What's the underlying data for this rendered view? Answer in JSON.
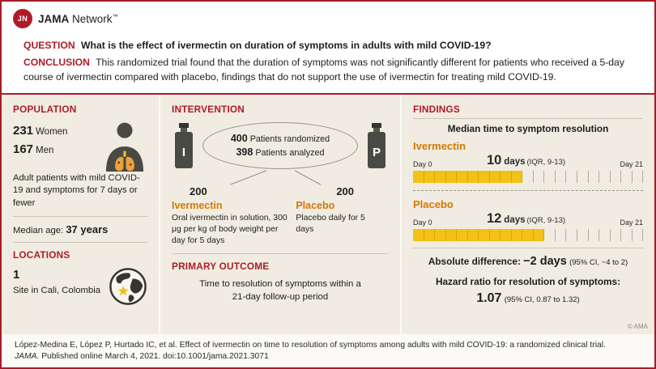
{
  "brand": {
    "logo_monogram": "JN",
    "name_bold": "JAMA",
    "name_regular": "Network",
    "trademark": "™"
  },
  "summary": {
    "question_label": "QUESTION",
    "question_text": "What is the effect of ivermectin on duration of symptoms in adults with mild COVID-19?",
    "conclusion_label": "CONCLUSION",
    "conclusion_text": "This randomized trial found that the duration of symptoms was not significantly different for patients who received a 5-day course of ivermectin compared with placebo, findings that do not support the use of ivermectin for treating mild COVID-19."
  },
  "population": {
    "heading": "POPULATION",
    "stats": [
      {
        "value": "231",
        "label": "Women"
      },
      {
        "value": "167",
        "label": "Men"
      }
    ],
    "description": "Adult patients with mild COVID-19 and symptoms for 7 days or fewer",
    "median_age_label": "Median age:",
    "median_age_value": "37 years"
  },
  "locations": {
    "heading": "LOCATIONS",
    "count": "1",
    "description": "Site in Cali, Colombia"
  },
  "intervention": {
    "heading": "INTERVENTION",
    "bottle_left_letter": "I",
    "bottle_right_letter": "P",
    "randomized_value": "400",
    "randomized_label": "Patients randomized",
    "analyzed_value": "398",
    "analyzed_label": "Patients analyzed",
    "arms": [
      {
        "count": "200",
        "name": "Ivermectin",
        "description": "Oral ivermectin in solution, 300 μg per kg of body weight per day for 5 days"
      },
      {
        "count": "200",
        "name": "Placebo",
        "description": "Placebo daily for 5 days"
      }
    ]
  },
  "primary_outcome": {
    "heading": "PRIMARY OUTCOME",
    "text": "Time to resolution of symptoms within a 21-day follow-up period"
  },
  "findings": {
    "heading": "FINDINGS",
    "subtitle": "Median time to symptom resolution",
    "groups": [
      {
        "name": "Ivermectin",
        "value": "10",
        "unit": "days",
        "iqr": "(IQR, 9-13)",
        "day_start": "Day 0",
        "day_end": "Day 21"
      },
      {
        "name": "Placebo",
        "value": "12",
        "unit": "days",
        "iqr": "(IQR, 9-13)",
        "day_start": "Day 0",
        "day_end": "Day 21"
      }
    ],
    "absolute_difference": {
      "label": "Absolute difference:",
      "value": "−2 days",
      "ci": "(95% CI, −4 to 2)"
    },
    "hazard_ratio": {
      "label": "Hazard ratio for resolution of symptoms:",
      "value": "1.07",
      "ci": "(95% CI, 0.87 to 1.32)"
    },
    "copyright": "© AMA"
  },
  "footer": {
    "citation_line1": "López-Medina E, López P, Hurtado IC, et al. Effect of ivermectin on time to resolution of symptoms among adults with mild COVID-19: a randomized clinical trial.",
    "citation_journal": "JAMA.",
    "citation_line2": " Published online March 4, 2021. doi:10.1001/jama.2021.3071"
  },
  "colors": {
    "jama_red": "#ae1c27",
    "accent_orange": "#d57800",
    "bar_yellow": "#f3c117",
    "panel_beige": "#f0ece1"
  },
  "chart_data": {
    "type": "bar",
    "title": "Median time to symptom resolution",
    "xlabel": "Days",
    "x_range": [
      0,
      21
    ],
    "series": [
      {
        "name": "Ivermectin",
        "median_days": 10,
        "iqr": [
          9,
          13
        ],
        "total_days": 21
      },
      {
        "name": "Placebo",
        "median_days": 12,
        "iqr": [
          9,
          13
        ],
        "total_days": 21
      }
    ],
    "absolute_difference_days": -2,
    "absolute_difference_ci": [
      -4,
      2
    ],
    "hazard_ratio": 1.07,
    "hazard_ratio_ci": [
      0.87,
      1.32
    ]
  }
}
